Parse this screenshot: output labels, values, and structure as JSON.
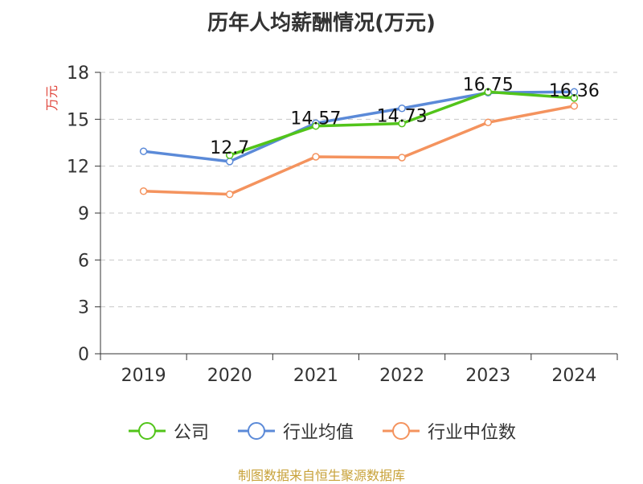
{
  "chart_data": {
    "type": "line",
    "title": "历年人均薪酬情况(万元)",
    "ylabel": "万元",
    "xlabel": "",
    "categories": [
      "2019",
      "2020",
      "2021",
      "2022",
      "2023",
      "2024"
    ],
    "ylim": [
      0,
      18
    ],
    "yticks": [
      0,
      3,
      6,
      9,
      12,
      15,
      18
    ],
    "grid": true,
    "legend_position": "bottom",
    "series": [
      {
        "name": "公司",
        "color": "#52c41a",
        "values": [
          null,
          12.7,
          14.57,
          14.73,
          16.75,
          16.36
        ],
        "data_labels": [
          null,
          "12.7",
          "14.57",
          "14.73",
          "16.75",
          "16.36"
        ]
      },
      {
        "name": "行业均值",
        "color": "#5b8ad8",
        "values": [
          12.95,
          12.3,
          14.75,
          15.7,
          16.7,
          16.75
        ],
        "data_labels": [
          null,
          null,
          null,
          null,
          null,
          null
        ]
      },
      {
        "name": "行业中位数",
        "color": "#f4935e",
        "values": [
          10.4,
          10.2,
          12.6,
          12.55,
          14.8,
          15.85
        ],
        "data_labels": [
          null,
          null,
          null,
          null,
          null,
          null
        ]
      }
    ]
  },
  "source_note": "制图数据来自恒生聚源数据库"
}
